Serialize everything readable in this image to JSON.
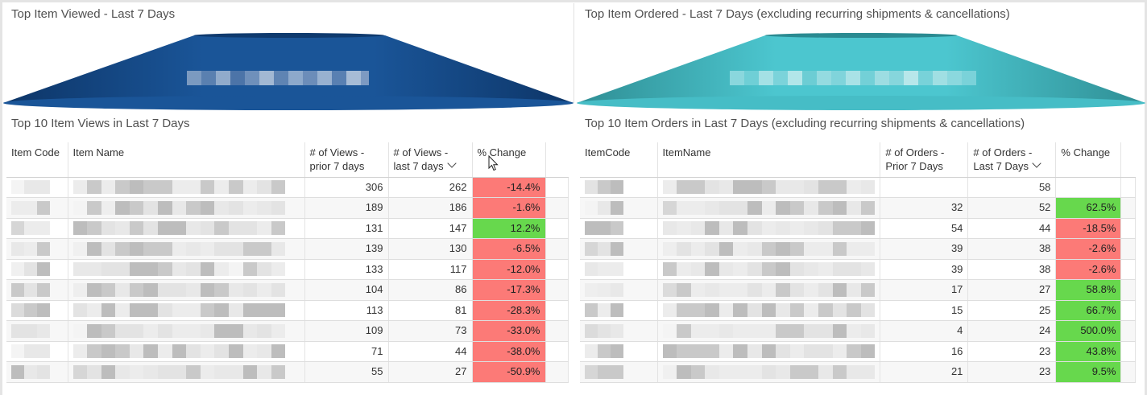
{
  "left": {
    "funnel_title": "Top Item Viewed - Last 7 Days",
    "table_title": "Top 10 Item Views in Last 7 Days",
    "funnel_color": "#154e8e",
    "columns": [
      "Item Code",
      "Item Name",
      "# of Views - prior 7 days",
      "# of Views - last 7 days",
      "% Change"
    ],
    "rows": [
      {
        "prior": "306",
        "last": "262",
        "change": "-14.4%",
        "trend": "neg"
      },
      {
        "prior": "189",
        "last": "186",
        "change": "-1.6%",
        "trend": "neg"
      },
      {
        "prior": "131",
        "last": "147",
        "change": "12.2%",
        "trend": "pos"
      },
      {
        "prior": "139",
        "last": "130",
        "change": "-6.5%",
        "trend": "neg"
      },
      {
        "prior": "133",
        "last": "117",
        "change": "-12.0%",
        "trend": "neg"
      },
      {
        "prior": "104",
        "last": "86",
        "change": "-17.3%",
        "trend": "neg"
      },
      {
        "prior": "113",
        "last": "81",
        "change": "-28.3%",
        "trend": "neg"
      },
      {
        "prior": "109",
        "last": "73",
        "change": "-33.0%",
        "trend": "neg"
      },
      {
        "prior": "71",
        "last": "44",
        "change": "-38.0%",
        "trend": "neg"
      },
      {
        "prior": "55",
        "last": "27",
        "change": "-50.9%",
        "trend": "neg"
      }
    ]
  },
  "right": {
    "funnel_title": "Top Item Ordered - Last 7 Days (excluding recurring shipments & cancellations)",
    "table_title": "Top 10 Item Orders in Last 7 Days (excluding recurring shipments & cancellations)",
    "funnel_color": "#45c0c8",
    "columns": [
      "ItemCode",
      "ItemName",
      "# of Orders - Prior 7 Days",
      "# of Orders - Last 7 Days",
      "% Change"
    ],
    "rows": [
      {
        "prior": "",
        "last": "58",
        "change": "",
        "trend": "none"
      },
      {
        "prior": "32",
        "last": "52",
        "change": "62.5%",
        "trend": "pos"
      },
      {
        "prior": "54",
        "last": "44",
        "change": "-18.5%",
        "trend": "neg"
      },
      {
        "prior": "39",
        "last": "38",
        "change": "-2.6%",
        "trend": "neg"
      },
      {
        "prior": "39",
        "last": "38",
        "change": "-2.6%",
        "trend": "neg"
      },
      {
        "prior": "17",
        "last": "27",
        "change": "58.8%",
        "trend": "pos"
      },
      {
        "prior": "15",
        "last": "25",
        "change": "66.7%",
        "trend": "pos"
      },
      {
        "prior": "4",
        "last": "24",
        "change": "500.0%",
        "trend": "pos"
      },
      {
        "prior": "16",
        "last": "23",
        "change": "43.8%",
        "trend": "pos"
      },
      {
        "prior": "21",
        "last": "23",
        "change": "9.5%",
        "trend": "pos"
      }
    ]
  },
  "colors": {
    "negative": "#fc7a77",
    "positive": "#67d84d"
  }
}
